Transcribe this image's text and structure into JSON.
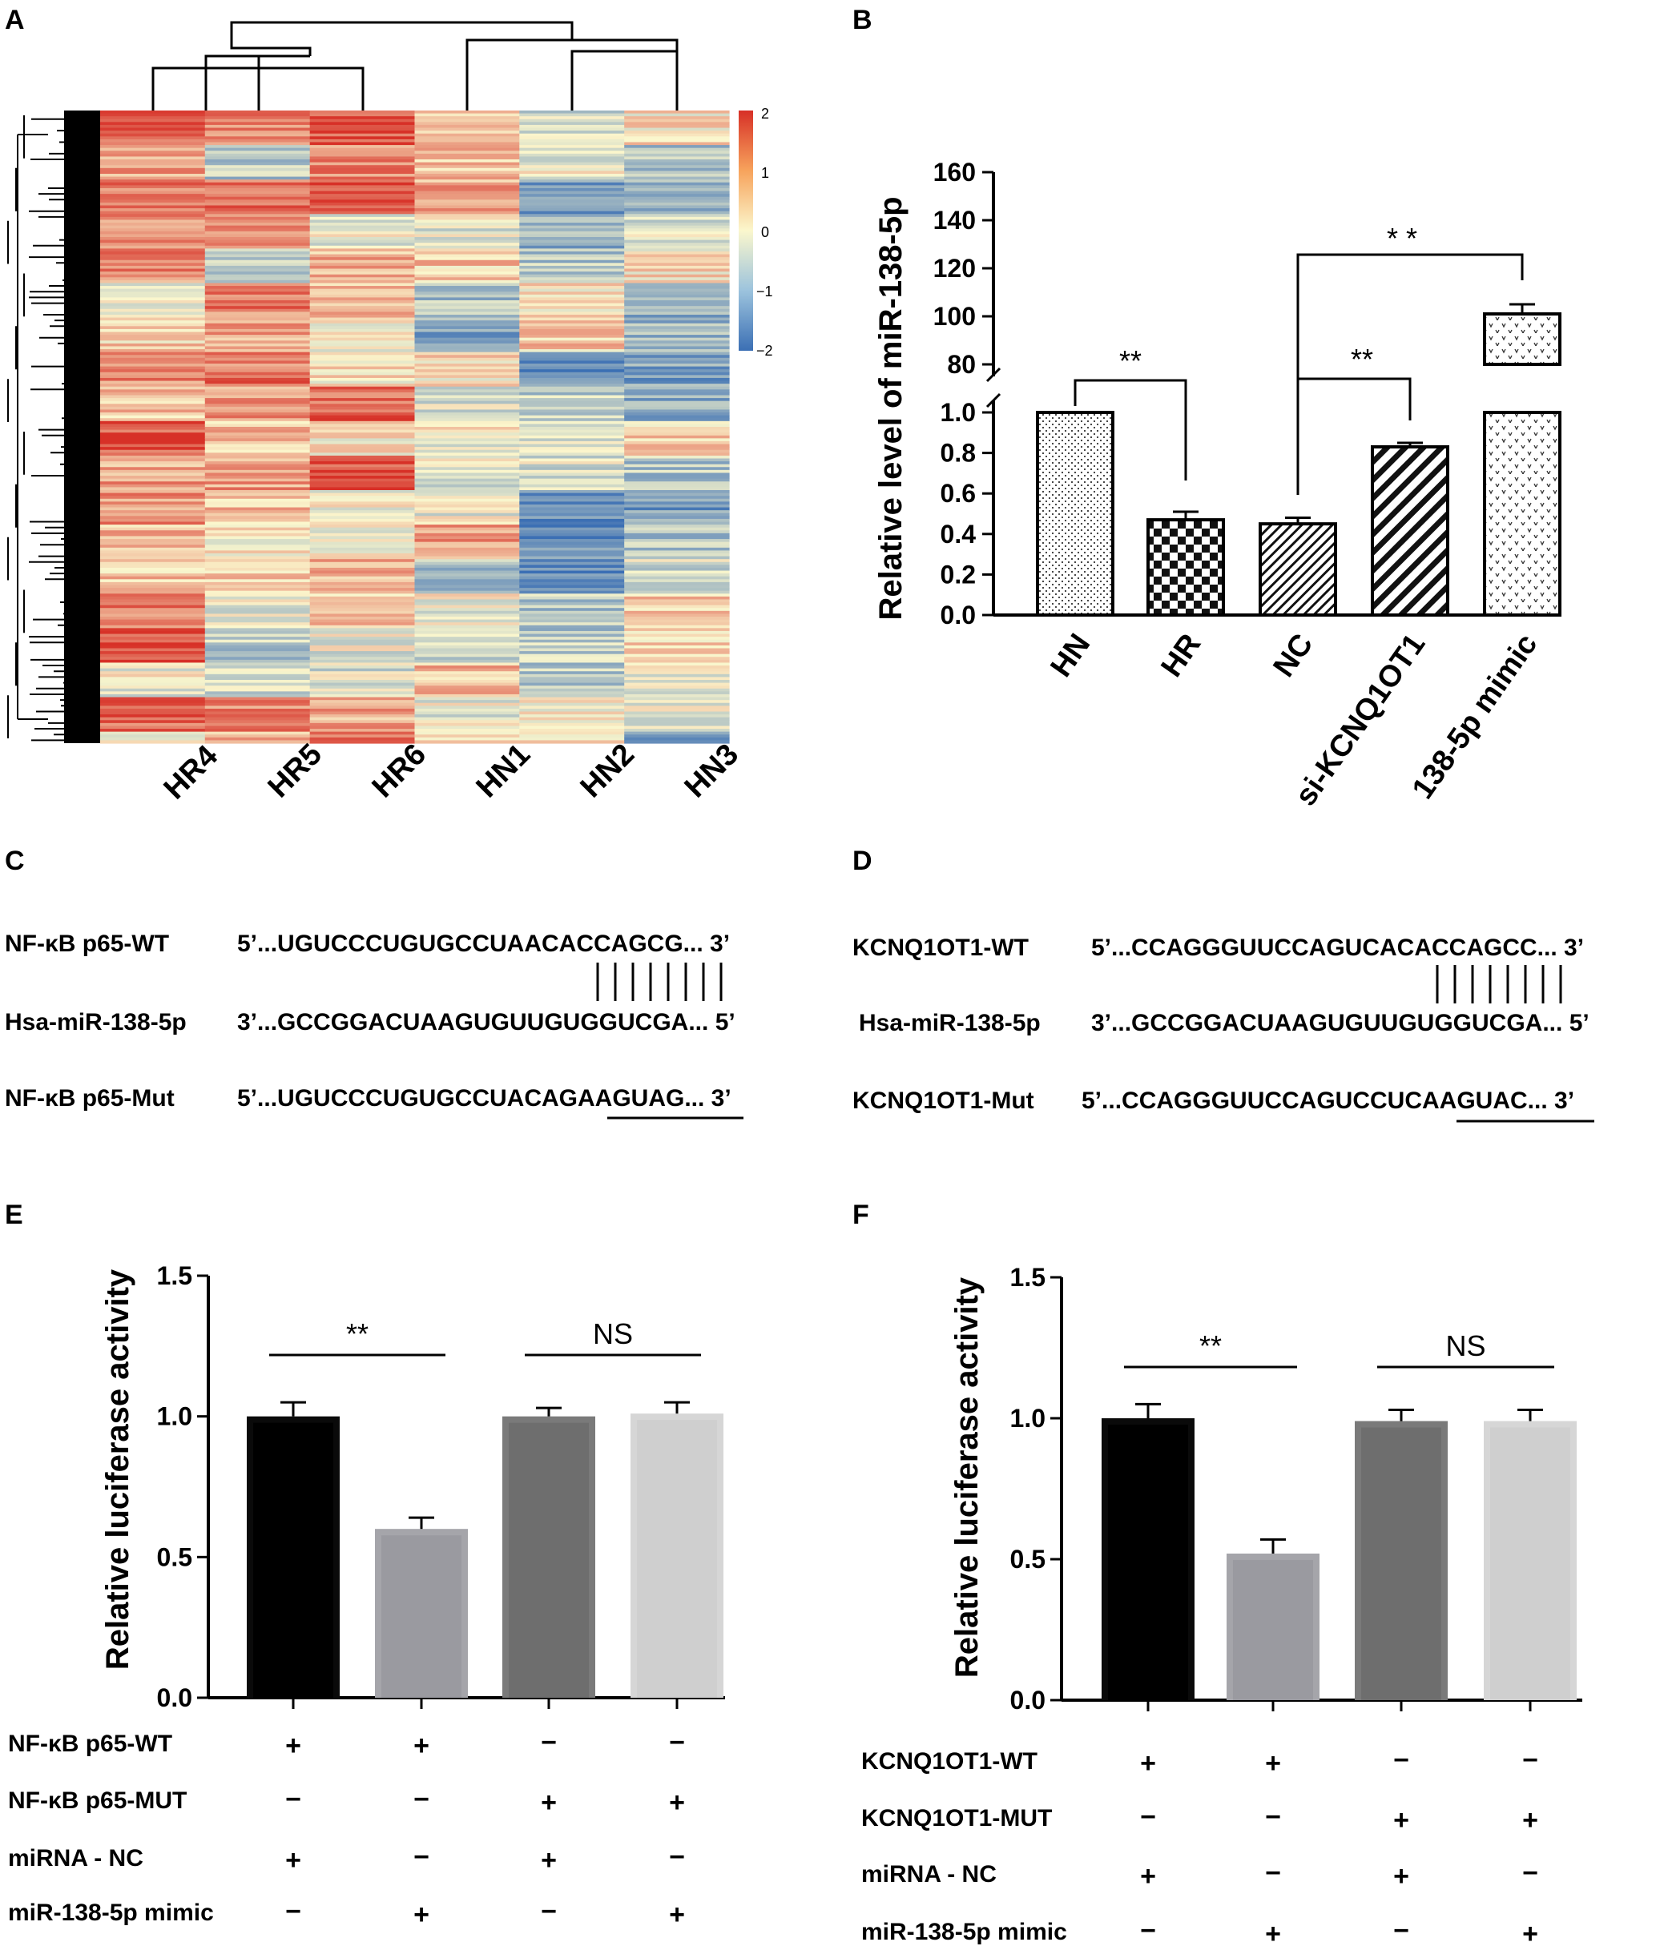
{
  "panels": {
    "A": "A",
    "B": "B",
    "C": "C",
    "D": "D",
    "E": "E",
    "F": "F"
  },
  "colors": {
    "heat_low": "#3b6fb4",
    "heat_mid": "#fbf7cd",
    "heat_high": "#d73027",
    "bar_black": "#0a0a0a",
    "bar_gray": "#a5a5aa",
    "bar_dark": "#7a7a7a",
    "bar_light": "#d6d6d6"
  },
  "chart_data": [
    {
      "id": "heatmap",
      "type": "heatmap",
      "title": "",
      "columns": [
        "HR4",
        "HR5",
        "HR6",
        "HN1",
        "HN2",
        "HN3"
      ],
      "colorbar": {
        "min": -2,
        "max": 2,
        "ticks": [
          "2",
          "1",
          "0",
          "−1",
          "−2"
        ]
      },
      "column_means": [
        0.7,
        0.3,
        0.6,
        -0.1,
        -0.6,
        -0.3
      ]
    },
    {
      "id": "mir138_level",
      "type": "bar",
      "categories": [
        "HN",
        "HR",
        "NC",
        "si-KCNQ1OT1",
        "138-5p mimic"
      ],
      "values": [
        1.0,
        0.47,
        0.45,
        0.83,
        101
      ],
      "errors": [
        0,
        0.04,
        0.03,
        0.02,
        4
      ],
      "ylabel": "Relative level  of miR-138-5p",
      "lower_ylim": [
        0,
        1.0
      ],
      "upper_ylim": [
        80,
        160
      ],
      "lower_ticks": [
        "0.0",
        "0.2",
        "0.4",
        "0.6",
        "0.8",
        "1.0"
      ],
      "upper_ticks": [
        "80",
        "100",
        "120",
        "140",
        "160"
      ],
      "significance": [
        {
          "from": "HN",
          "to": "HR",
          "label": "**"
        },
        {
          "from": "NC",
          "to": "si-KCNQ1OT1",
          "label": "**"
        },
        {
          "from": "NC",
          "to": "138-5p mimic",
          "label": "* *"
        }
      ]
    },
    {
      "id": "luciferase_p65",
      "type": "bar",
      "categories": [
        "NF-κB p65-WT + miRNA-NC",
        "NF-κB p65-WT + miR-138-5p mimic",
        "NF-κB p65-MUT + miRNA-NC",
        "NF-κB p65-MUT + miR-138-5p mimic"
      ],
      "values": [
        1.0,
        0.6,
        1.0,
        1.01
      ],
      "errors": [
        0.05,
        0.04,
        0.03,
        0.04
      ],
      "ylabel": "Relative luciferase activity",
      "ylim": [
        0,
        1.5
      ],
      "ticks": [
        "0.0",
        "0.5",
        "1.0",
        "1.5"
      ],
      "significance": [
        {
          "bars": [
            0,
            1
          ],
          "label": "**"
        },
        {
          "bars": [
            2,
            3
          ],
          "label": "NS"
        }
      ],
      "row_labels": [
        "NF-κB p65-WT",
        "NF-κB p65-MUT",
        "miRNA - NC",
        "miR-138-5p mimic"
      ],
      "row_values": [
        [
          "+",
          "+",
          "−",
          "−"
        ],
        [
          "−",
          "−",
          "+",
          "+"
        ],
        [
          "+",
          "−",
          "+",
          "−"
        ],
        [
          "−",
          "+",
          "−",
          "+"
        ]
      ]
    },
    {
      "id": "luciferase_kcnq",
      "type": "bar",
      "categories": [
        "KCNQ1OT1-WT + miRNA-NC",
        "KCNQ1OT1-WT + miR-138-5p mimic",
        "KCNQ1OT1-MUT + miRNA-NC",
        "KCNQ1OT1-MUT + miR-138-5p mimic"
      ],
      "values": [
        1.0,
        0.52,
        0.99,
        0.99
      ],
      "errors": [
        0.05,
        0.05,
        0.04,
        0.04
      ],
      "ylabel": "Relative luciferase activity",
      "ylim": [
        0,
        1.5
      ],
      "ticks": [
        "0.0",
        "0.5",
        "1.0",
        "1.5"
      ],
      "significance": [
        {
          "bars": [
            0,
            1
          ],
          "label": "**"
        },
        {
          "bars": [
            2,
            3
          ],
          "label": "NS"
        }
      ],
      "row_labels": [
        "KCNQ1OT1-WT",
        "KCNQ1OT1-MUT",
        "miRNA - NC",
        "miR-138-5p mimic"
      ],
      "row_values": [
        [
          "+",
          "+",
          "−",
          "−"
        ],
        [
          "−",
          "−",
          "+",
          "+"
        ],
        [
          "+",
          "−",
          "+",
          "−"
        ],
        [
          "−",
          "+",
          "−",
          "+"
        ]
      ]
    }
  ],
  "sequences_C": {
    "rows": [
      {
        "label": "NF-κB p65-WT",
        "seq": "5’...UGUCCCUGUGCCUAACACCAGCG... 3’"
      },
      {
        "label": "Hsa-miR-138-5p",
        "seq": "3’...GCCGGACUAAGUGUUGUGGUCGA... 5’"
      },
      {
        "label": "NF-κB p65-Mut",
        "seq": "5’...UGUCCCUGUGCCUACAGAAGUAG... 3’"
      }
    ],
    "pair_lines": 8
  },
  "sequences_D": {
    "rows": [
      {
        "label": "KCNQ1OT1-WT",
        "seq": "5’...CCAGGGUUCCAGUCACACCAGCC... 3’"
      },
      {
        "label": "Hsa-miR-138-5p",
        "seq": "3’...GCCGGACUAAGUGUUGUGGUCGA... 5’"
      },
      {
        "label": "KCNQ1OT1-Mut",
        "seq": "5’...CCAGGGUUCCAGUCCUCAAGUAC... 3’"
      }
    ],
    "pair_lines": 8
  }
}
